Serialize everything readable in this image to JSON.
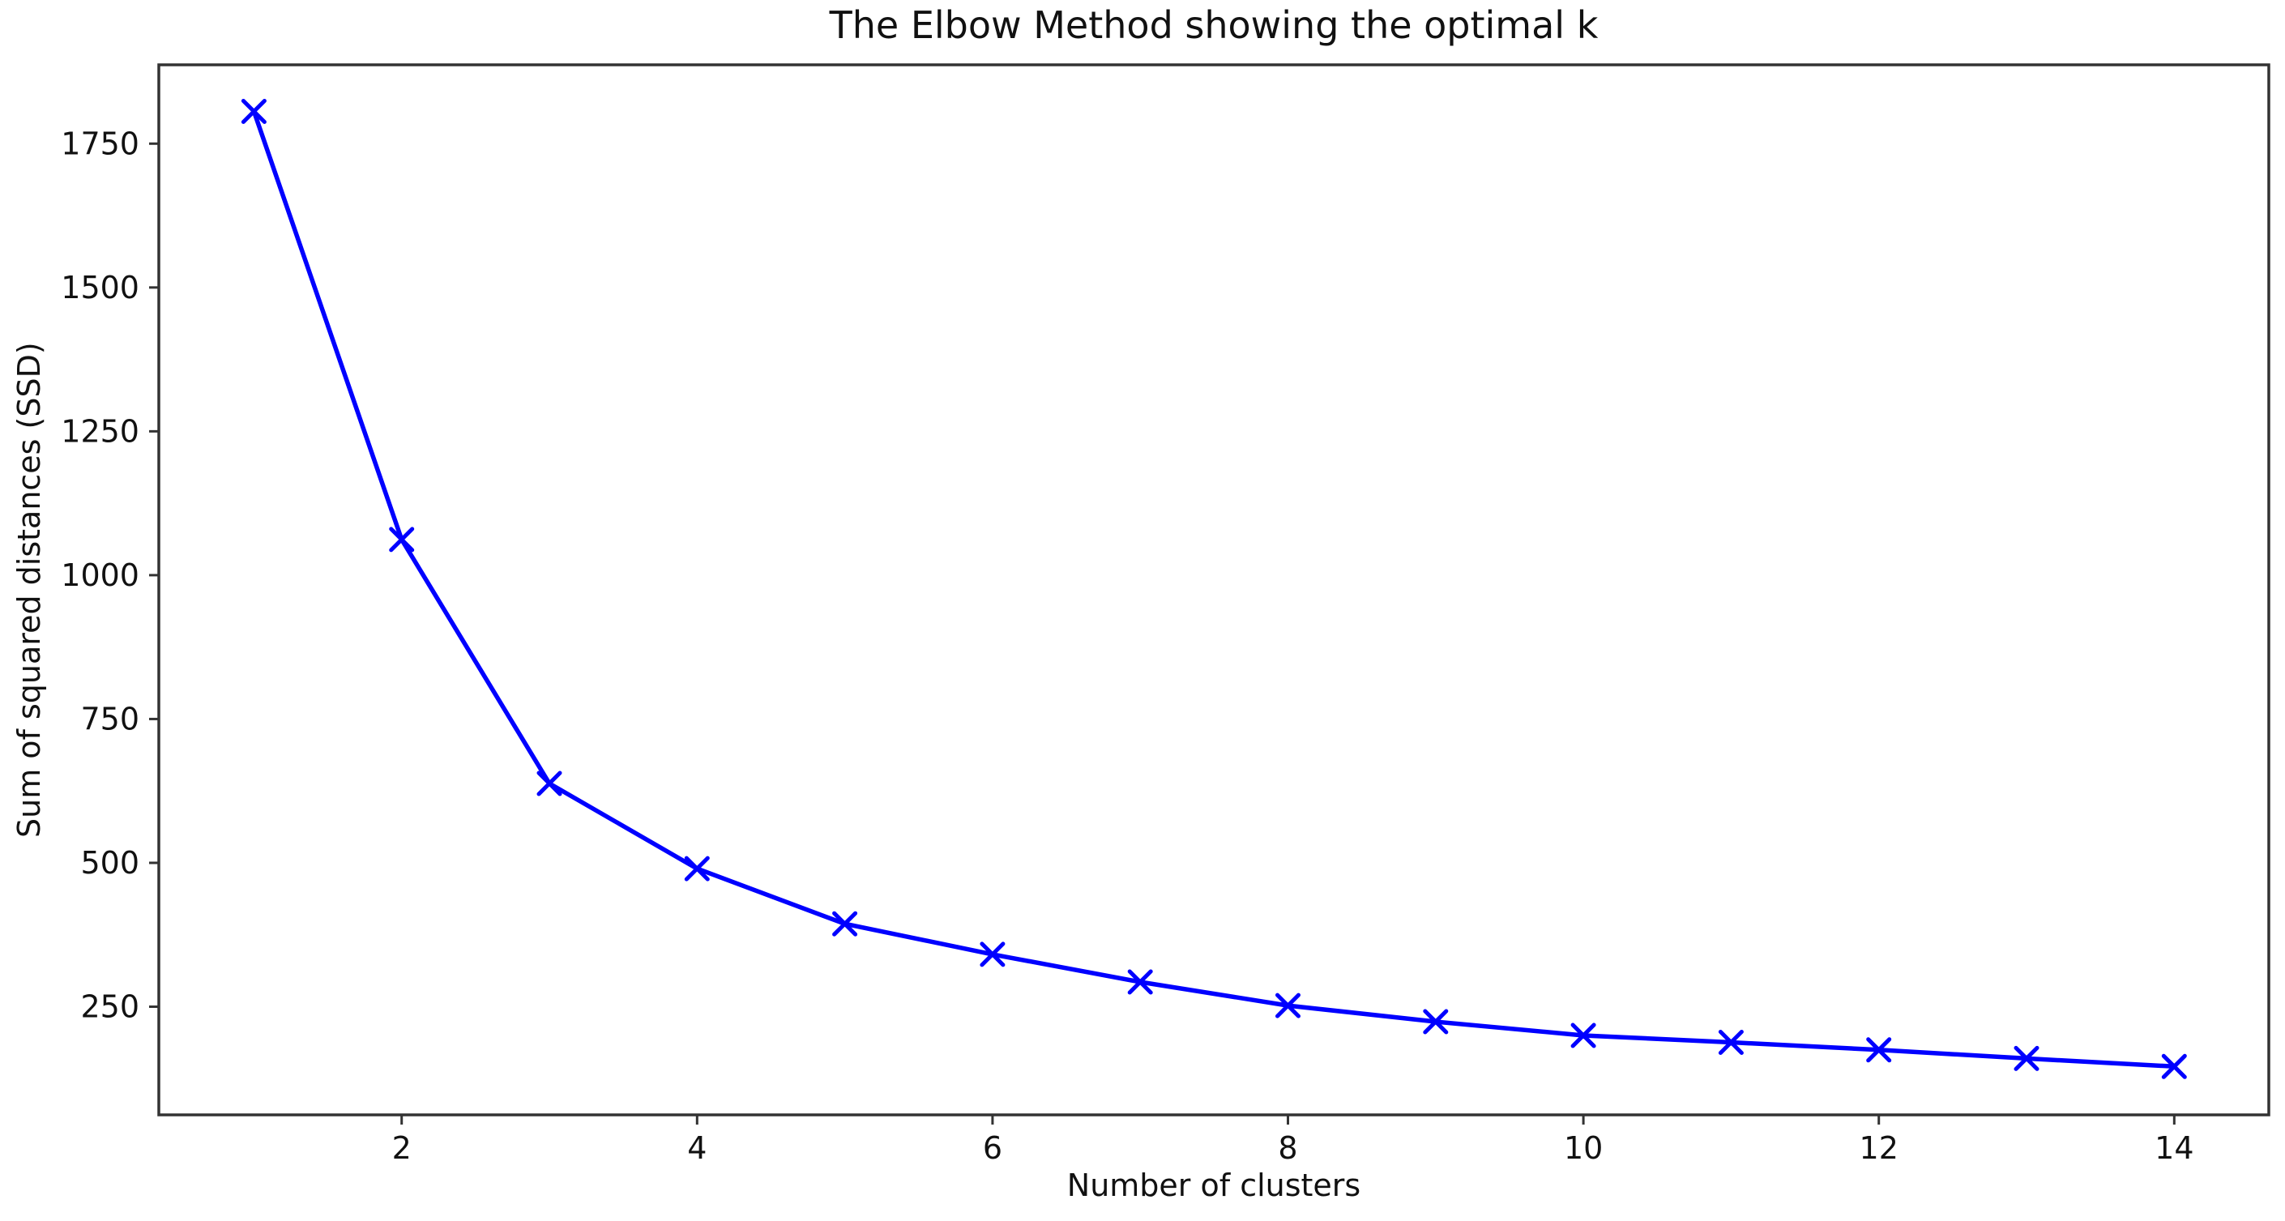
{
  "chart_data": {
    "type": "line",
    "title": "The Elbow Method showing the optimal k",
    "xlabel": "Number of clusters",
    "ylabel": "Sum of squared distances (SSD)",
    "x": [
      1,
      2,
      3,
      4,
      5,
      6,
      7,
      8,
      9,
      10,
      11,
      12,
      13,
      14
    ],
    "series": [
      {
        "name": "SSD",
        "values": [
          1806,
          1062,
          638,
          490,
          394,
          341,
          293,
          252,
          224,
          200,
          188,
          175,
          160,
          146
        ]
      }
    ],
    "x_ticks": [
      2,
      4,
      6,
      8,
      10,
      12,
      14
    ],
    "y_ticks": [
      250,
      500,
      750,
      1000,
      1250,
      1500,
      1750
    ],
    "xlim": [
      0.356,
      14.64
    ],
    "ylim": [
      62,
      1887
    ],
    "grid": false,
    "legend": "none",
    "marker": "x",
    "line_color": "#0000ff",
    "axis_color": "#333333",
    "text_color": "#111111",
    "background_color": "#ffffff"
  }
}
